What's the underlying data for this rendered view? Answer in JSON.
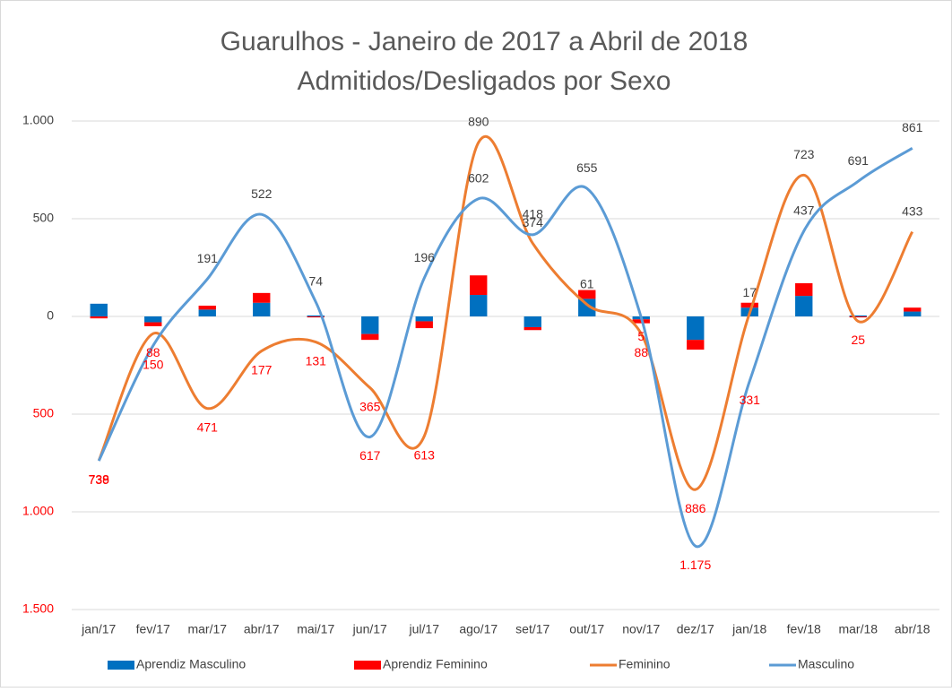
{
  "chart_data": {
    "type": "combo",
    "title": "Guarulhos - Janeiro de 2017 a Abril de 2018",
    "subtitle": "Admitidos/Desligados por Sexo",
    "categories": [
      "jan/17",
      "fev/17",
      "mar/17",
      "abr/17",
      "mai/17",
      "jun/17",
      "jul/17",
      "ago/17",
      "set/17",
      "out/17",
      "nov/17",
      "dez/17",
      "jan/18",
      "fev/18",
      "mar/18",
      "abr/18"
    ],
    "ylim": [
      -1500,
      1000
    ],
    "yticks": [
      {
        "value": 1000,
        "label": "1.000"
      },
      500,
      0,
      {
        "value": -500,
        "label": "500"
      },
      {
        "value": -1000,
        "label": "1.000"
      },
      {
        "value": -1500,
        "label": "1.500"
      }
    ],
    "grid": true,
    "negative_label_color": "#ff0000",
    "series": [
      {
        "name": "Aprendiz Masculino",
        "kind": "bar",
        "color": "#0070c0",
        "values": [
          65,
          -30,
          35,
          70,
          5,
          -90,
          -25,
          110,
          -55,
          90,
          -15,
          -120,
          45,
          105,
          5,
          25
        ]
      },
      {
        "name": "Aprendiz Feminino",
        "kind": "bar",
        "color": "#ff0000",
        "values": [
          -10,
          -20,
          20,
          50,
          -5,
          -30,
          -35,
          100,
          -15,
          45,
          -20,
          -50,
          25,
          65,
          -5,
          20
        ]
      },
      {
        "name": "Feminino",
        "kind": "line",
        "color": "#ed7d31",
        "values": [
          -738,
          -88,
          -471,
          -177,
          -131,
          -365,
          -613,
          890,
          374,
          61,
          -88,
          -886,
          17,
          723,
          -25,
          433
        ],
        "value_labels": [
          "738",
          "88",
          "471",
          "177",
          "131",
          "365",
          "613",
          "890",
          "374",
          "61",
          "88",
          "886",
          "17",
          "723",
          "25",
          "433"
        ]
      },
      {
        "name": "Masculino",
        "kind": "line",
        "color": "#5b9bd5",
        "values": [
          -739,
          -150,
          191,
          522,
          74,
          -617,
          196,
          602,
          418,
          655,
          -5,
          -1175,
          -331,
          437,
          691,
          861
        ],
        "value_labels": [
          "739",
          "150",
          "191",
          "522",
          "74",
          "617",
          "196",
          "602",
          "418",
          "655",
          "5",
          "1.175",
          "331",
          "437",
          "691",
          "861"
        ]
      }
    ]
  }
}
